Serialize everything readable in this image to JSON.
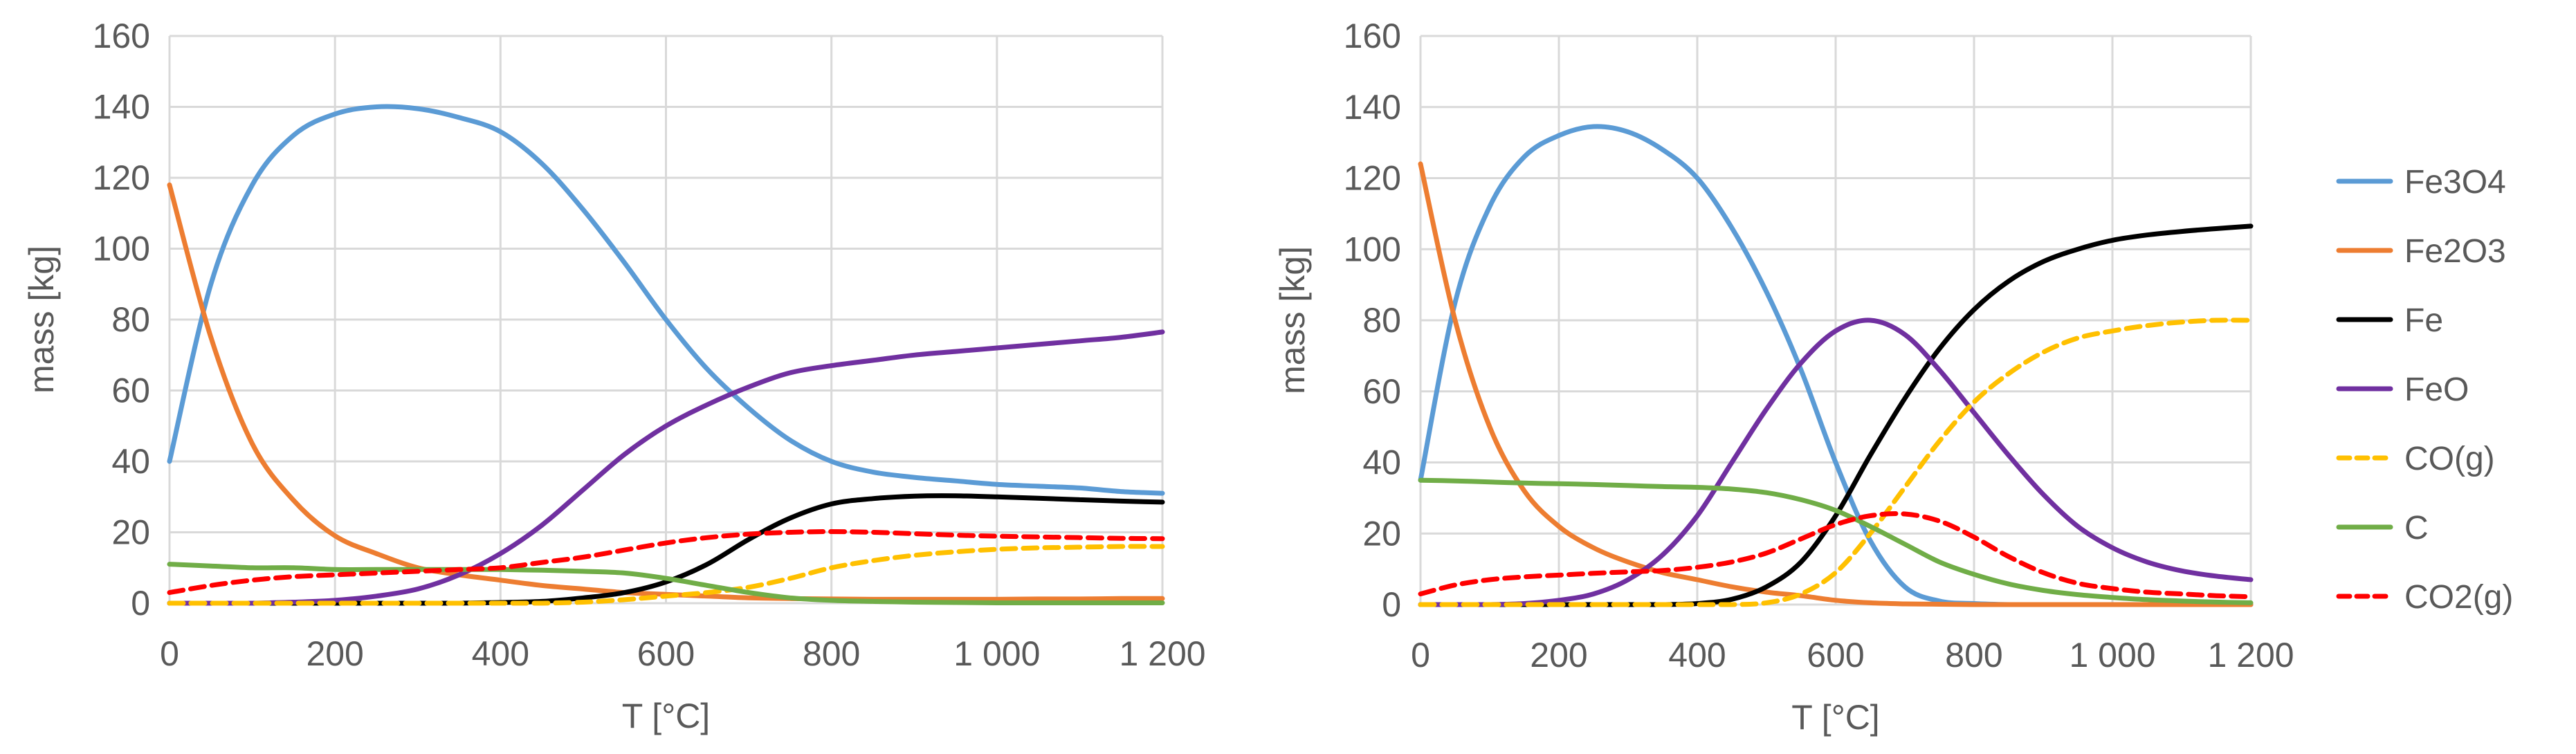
{
  "chart_data": [
    {
      "type": "line",
      "title": "",
      "xlabel": "T [°C]",
      "ylabel": "mass [kg]",
      "xlim": [
        0,
        1200
      ],
      "ylim": [
        0,
        160
      ],
      "xticks": [
        0,
        200,
        400,
        600,
        800,
        1000,
        1200
      ],
      "xtick_labels": [
        "0",
        "200",
        "400",
        "600",
        "800",
        "1 000",
        "1 200"
      ],
      "yticks": [
        0,
        20,
        40,
        60,
        80,
        100,
        120,
        140,
        160
      ],
      "ytick_labels": [
        "0",
        "20",
        "40",
        "60",
        "80",
        "100",
        "120",
        "140",
        "160"
      ],
      "grid": true,
      "x": [
        0,
        50,
        100,
        150,
        200,
        250,
        300,
        350,
        400,
        450,
        500,
        550,
        600,
        650,
        700,
        750,
        800,
        850,
        900,
        950,
        1000,
        1050,
        1100,
        1150,
        1200
      ],
      "series": [
        {
          "name": "Fe3O4",
          "dashed": false,
          "values": [
            40,
            90,
            118,
            132,
            138,
            140,
            139.5,
            137,
            133,
            124,
            111,
            96,
            80,
            66,
            55,
            46,
            40,
            37,
            35.5,
            34.5,
            33.5,
            33,
            32.5,
            31.5,
            31
          ]
        },
        {
          "name": "Fe2O3",
          "dashed": false,
          "values": [
            118,
            75,
            45,
            29,
            19,
            14,
            10,
            8,
            6.5,
            5,
            4,
            3,
            2.5,
            2,
            1.5,
            1.3,
            1.2,
            1.1,
            1.1,
            1.1,
            1.1,
            1.2,
            1.2,
            1.3,
            1.3
          ]
        },
        {
          "name": "Fe",
          "dashed": false,
          "values": [
            0,
            0,
            0,
            0,
            0,
            0,
            0,
            0,
            0.2,
            0.5,
            1.5,
            3,
            6,
            11,
            18,
            24,
            28,
            29.5,
            30.2,
            30.3,
            30,
            29.6,
            29.2,
            28.8,
            28.5
          ]
        },
        {
          "name": "FeO",
          "dashed": false,
          "values": [
            0,
            0,
            0,
            0.3,
            0.8,
            2,
            4,
            8,
            14,
            22,
            32,
            42,
            50,
            56,
            61,
            65,
            67,
            68.5,
            70,
            71,
            72,
            73,
            74,
            75,
            76.5
          ]
        },
        {
          "name": "CO(g)",
          "dashed": true,
          "values": [
            0,
            0,
            0,
            0,
            0,
            0,
            0,
            0,
            0,
            0,
            0.3,
            1,
            2,
            3,
            4.5,
            7,
            10,
            12,
            13.5,
            14.5,
            15.2,
            15.6,
            15.8,
            16,
            16
          ]
        },
        {
          "name": "C",
          "dashed": false,
          "values": [
            11,
            10.5,
            10,
            10,
            9.5,
            9.5,
            9.5,
            9.5,
            9.5,
            9.3,
            9,
            8.5,
            7,
            5,
            3,
            1.5,
            0.8,
            0.5,
            0.3,
            0.2,
            0.1,
            0.1,
            0.1,
            0.1,
            0.1
          ]
        },
        {
          "name": "CO2(g)",
          "dashed": true,
          "values": [
            3,
            5,
            6.5,
            7.5,
            8,
            8.5,
            9,
            9.5,
            10,
            11.5,
            13,
            15,
            17,
            18.5,
            19.5,
            20,
            20.2,
            20,
            19.6,
            19.2,
            18.9,
            18.7,
            18.5,
            18.3,
            18.2
          ]
        }
      ]
    },
    {
      "type": "line",
      "title": "",
      "xlabel": "T [°C]",
      "ylabel": "mass [kg]",
      "xlim": [
        0,
        1200
      ],
      "ylim": [
        0,
        160
      ],
      "xticks": [
        0,
        200,
        400,
        600,
        800,
        1000,
        1200
      ],
      "xtick_labels": [
        "0",
        "200",
        "400",
        "600",
        "800",
        "1 000",
        "1 200"
      ],
      "yticks": [
        0,
        20,
        40,
        60,
        80,
        100,
        120,
        140,
        160
      ],
      "ytick_labels": [
        "0",
        "20",
        "40",
        "60",
        "80",
        "100",
        "120",
        "140",
        "160"
      ],
      "grid": true,
      "x": [
        0,
        50,
        100,
        150,
        200,
        250,
        300,
        350,
        400,
        450,
        500,
        550,
        600,
        650,
        700,
        750,
        800,
        850,
        900,
        950,
        1000,
        1050,
        1100,
        1150,
        1200
      ],
      "series": [
        {
          "name": "Fe3O4",
          "dashed": false,
          "values": [
            35,
            85,
            112,
            126,
            132,
            134.5,
            133,
            128,
            120,
            106,
            88,
            66,
            40,
            18,
            5,
            1,
            0.3,
            0,
            0,
            0,
            0,
            0,
            0,
            0,
            0
          ]
        },
        {
          "name": "Fe2O3",
          "dashed": false,
          "values": [
            124,
            80,
            50,
            32,
            22,
            16,
            12,
            9,
            7,
            5,
            3.5,
            2.5,
            1.2,
            0.5,
            0.2,
            0.1,
            0,
            0,
            0,
            0,
            0,
            0,
            0,
            0,
            0
          ]
        },
        {
          "name": "Fe",
          "dashed": false,
          "values": [
            0,
            0,
            0,
            0,
            0,
            0,
            0,
            0,
            0.3,
            1.5,
            5,
            12,
            25,
            42,
            58,
            72,
            83,
            91,
            96.5,
            100,
            102.5,
            104,
            105,
            105.8,
            106.5
          ]
        },
        {
          "name": "FeO",
          "dashed": false,
          "values": [
            0,
            0,
            0,
            0.3,
            1.2,
            3,
            7,
            14,
            25,
            40,
            55,
            68,
            77,
            80,
            76,
            66,
            54,
            42,
            31,
            22,
            16,
            12,
            9.5,
            8,
            7
          ]
        },
        {
          "name": "CO(g)",
          "dashed": true,
          "values": [
            0,
            0,
            0,
            0,
            0,
            0,
            0,
            0,
            0,
            0,
            0.5,
            3,
            9,
            20,
            33,
            46,
            57,
            65,
            71,
            75,
            77,
            78.5,
            79.5,
            80,
            80
          ]
        },
        {
          "name": "C",
          "dashed": false,
          "values": [
            35,
            34.8,
            34.5,
            34.2,
            34,
            33.8,
            33.5,
            33.2,
            33,
            32.5,
            31.5,
            29.5,
            26.5,
            22,
            17,
            12,
            8.5,
            5.8,
            4,
            2.8,
            2,
            1.4,
            1,
            0.7,
            0.5
          ]
        },
        {
          "name": "CO2(g)",
          "dashed": true,
          "values": [
            3,
            5.5,
            7,
            7.8,
            8.3,
            8.8,
            9.2,
            9.6,
            10.5,
            12,
            14.5,
            18.5,
            22.5,
            25,
            25.5,
            23.5,
            19,
            13.5,
            9,
            6,
            4.5,
            3.5,
            3,
            2.5,
            2.2
          ]
        }
      ]
    }
  ],
  "legend": {
    "placement": "right",
    "items": [
      {
        "name": "Fe3O4",
        "color": "#5b9bd5",
        "dashed": false
      },
      {
        "name": "Fe2O3",
        "color": "#ed7d31",
        "dashed": false
      },
      {
        "name": "Fe",
        "color": "#000000",
        "dashed": false
      },
      {
        "name": "FeO",
        "color": "#7030a0",
        "dashed": false
      },
      {
        "name": "CO(g)",
        "color": "#ffc000",
        "dashed": true
      },
      {
        "name": "C",
        "color": "#70ad47",
        "dashed": false
      },
      {
        "name": "CO2(g)",
        "color": "#ff0000",
        "dashed": true
      }
    ]
  },
  "colors": {
    "Fe3O4": "#5b9bd5",
    "Fe2O3": "#ed7d31",
    "Fe": "#000000",
    "FeO": "#7030a0",
    "CO(g)": "#ffc000",
    "C": "#70ad47",
    "CO2(g)": "#ff0000",
    "grid": "#d9d9d9",
    "text": "#595959"
  }
}
